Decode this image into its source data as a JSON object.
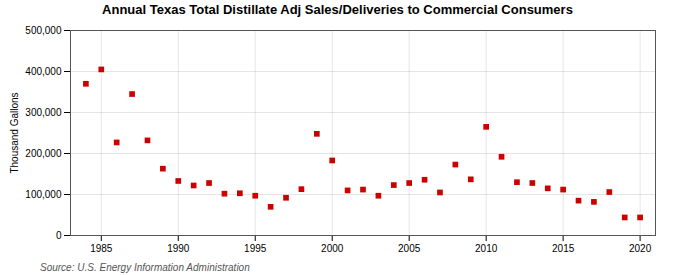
{
  "chart_data": {
    "type": "scatter",
    "title": "Annual Texas Total Distillate Adj Sales/Deliveries to Commercial Consumers",
    "ylabel": "Thousand Gallons",
    "caption": "Source: U.S. Energy Information Administration",
    "x": [
      1984,
      1985,
      1986,
      1987,
      1988,
      1989,
      1990,
      1991,
      1992,
      1993,
      1994,
      1995,
      1996,
      1997,
      1998,
      1999,
      2000,
      2001,
      2002,
      2003,
      2004,
      2005,
      2006,
      2007,
      2008,
      2009,
      2010,
      2011,
      2012,
      2013,
      2014,
      2015,
      2016,
      2017,
      2018,
      2019,
      2020
    ],
    "values": [
      370000,
      405000,
      227000,
      345000,
      232000,
      163000,
      133000,
      122000,
      128000,
      102000,
      103000,
      97000,
      70000,
      92000,
      113000,
      248000,
      183000,
      110000,
      112000,
      97000,
      123000,
      128000,
      136000,
      105000,
      173000,
      137000,
      265000,
      192000,
      130000,
      128000,
      115000,
      112000,
      85000,
      82000,
      106000,
      44000,
      44000
    ],
    "color": "#cc0000",
    "marker": "square",
    "xlim": [
      1983,
      2021
    ],
    "xticks": [
      1985,
      1990,
      1995,
      2000,
      2005,
      2010,
      2015,
      2020
    ],
    "ylim": [
      0,
      500000
    ],
    "yticks": [
      0,
      {
        "value": 100000,
        "label": "100,000"
      },
      {
        "value": 200000,
        "label": "200,000"
      },
      {
        "value": 300000,
        "label": "300,000"
      },
      {
        "value": 400000,
        "label": "400,000"
      },
      {
        "value": 500000,
        "label": "500,000"
      }
    ],
    "grid": true
  }
}
